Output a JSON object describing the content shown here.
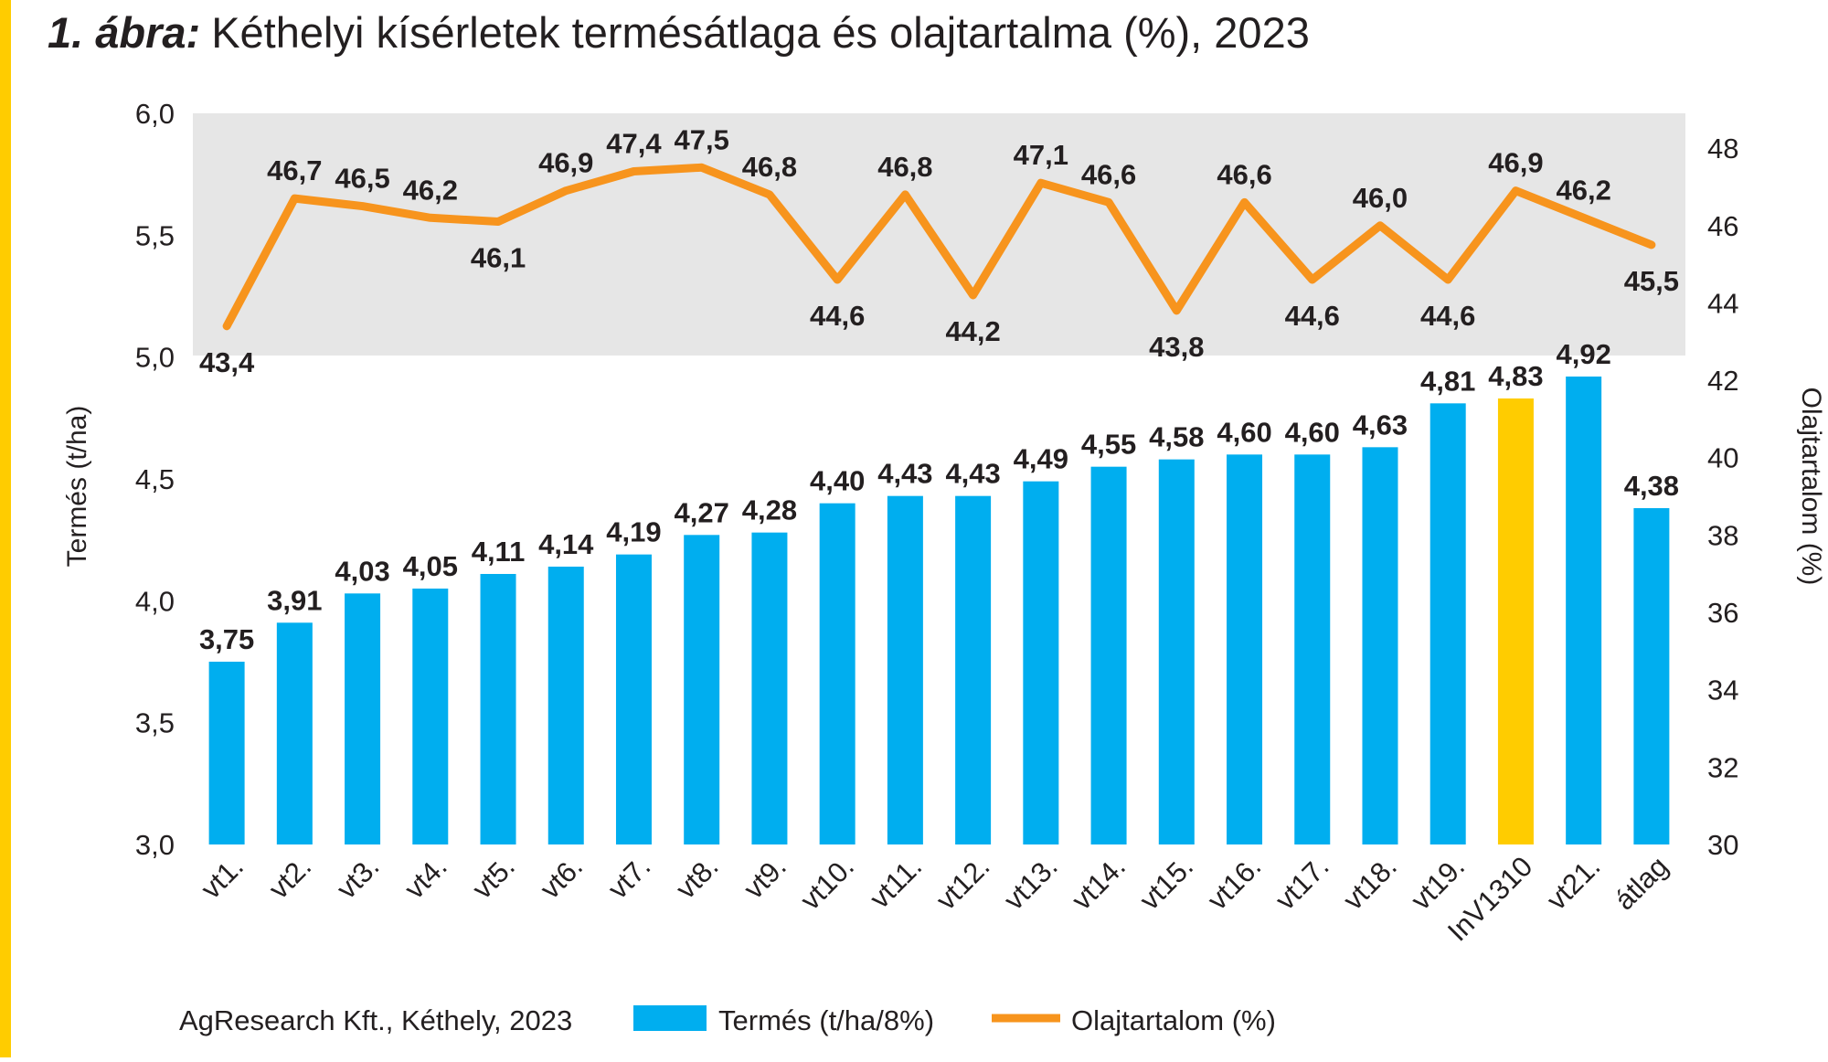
{
  "title": {
    "prefix": "1. ábra:",
    "text": "Kéthelyi kísérletek termésátlaga és olajtartalma (%), 2023"
  },
  "colors": {
    "accent_stripe": "#FFCC00",
    "bar": "#00AEEF",
    "bar_highlight": "#FFCC00",
    "line": "#F7941D",
    "plot_bg": "#E6E6E6",
    "text": "#231F20"
  },
  "footer": {
    "source": "AgResearch Kft., Kéthely, 2023"
  },
  "chart_data": {
    "type": "bar",
    "categories": [
      "vt1.",
      "vt2.",
      "vt3.",
      "vt4.",
      "vt5.",
      "vt6.",
      "vt7.",
      "vt8.",
      "vt9.",
      "vt10.",
      "vt11.",
      "vt12.",
      "vt13.",
      "vt14.",
      "vt15.",
      "vt16.",
      "vt17.",
      "vt18.",
      "vt19.",
      "InV1310",
      "vt21.",
      "átlag"
    ],
    "highlight_category": "InV1310",
    "ylabel": "Termés (t/ha)",
    "y2label": "Olajtartalom (%)",
    "ylim": [
      3.0,
      6.0
    ],
    "y2lim": [
      30,
      48.9
    ],
    "yticks": [
      "3,0",
      "3,5",
      "4,0",
      "4,5",
      "5,0",
      "5,5",
      "6,0"
    ],
    "y2ticks": [
      "30",
      "32",
      "34",
      "36",
      "38",
      "40",
      "42",
      "44",
      "46",
      "48"
    ],
    "legend_position": "bottom",
    "grid": false,
    "series": [
      {
        "name": "Termés (t/ha/8%)",
        "type": "bar",
        "axis": "left",
        "values": [
          3.75,
          3.91,
          4.03,
          4.05,
          4.11,
          4.14,
          4.19,
          4.27,
          4.28,
          4.4,
          4.43,
          4.43,
          4.49,
          4.55,
          4.58,
          4.6,
          4.6,
          4.63,
          4.81,
          4.83,
          4.92,
          4.38
        ],
        "labels": [
          "3,75",
          "3,91",
          "4,03",
          "4,05",
          "4,11",
          "4,14",
          "4,19",
          "4,27",
          "4,28",
          "4,40",
          "4,43",
          "4,43",
          "4,49",
          "4,55",
          "4,58",
          "4,60",
          "4,60",
          "4,63",
          "4,81",
          "4,83",
          "4,92",
          "4,38"
        ]
      },
      {
        "name": "Olajtartalom (%)",
        "type": "line",
        "axis": "right",
        "values": [
          43.4,
          46.7,
          46.5,
          46.2,
          46.1,
          46.9,
          47.4,
          47.5,
          46.8,
          44.6,
          46.8,
          44.2,
          47.1,
          46.6,
          43.8,
          46.6,
          44.6,
          46.0,
          44.6,
          46.9,
          46.2,
          45.5
        ],
        "labels": [
          "43,4",
          "46,7",
          "46,5",
          "46,2",
          "46,1",
          "46,9",
          "47,4",
          "47,5",
          "46,8",
          "44,6",
          "46,8",
          "44,2",
          "47,1",
          "46,6",
          "43,8",
          "46,6",
          "44,6",
          "46,0",
          "44,6",
          "46,9",
          "46,2",
          "45,5"
        ]
      }
    ]
  }
}
